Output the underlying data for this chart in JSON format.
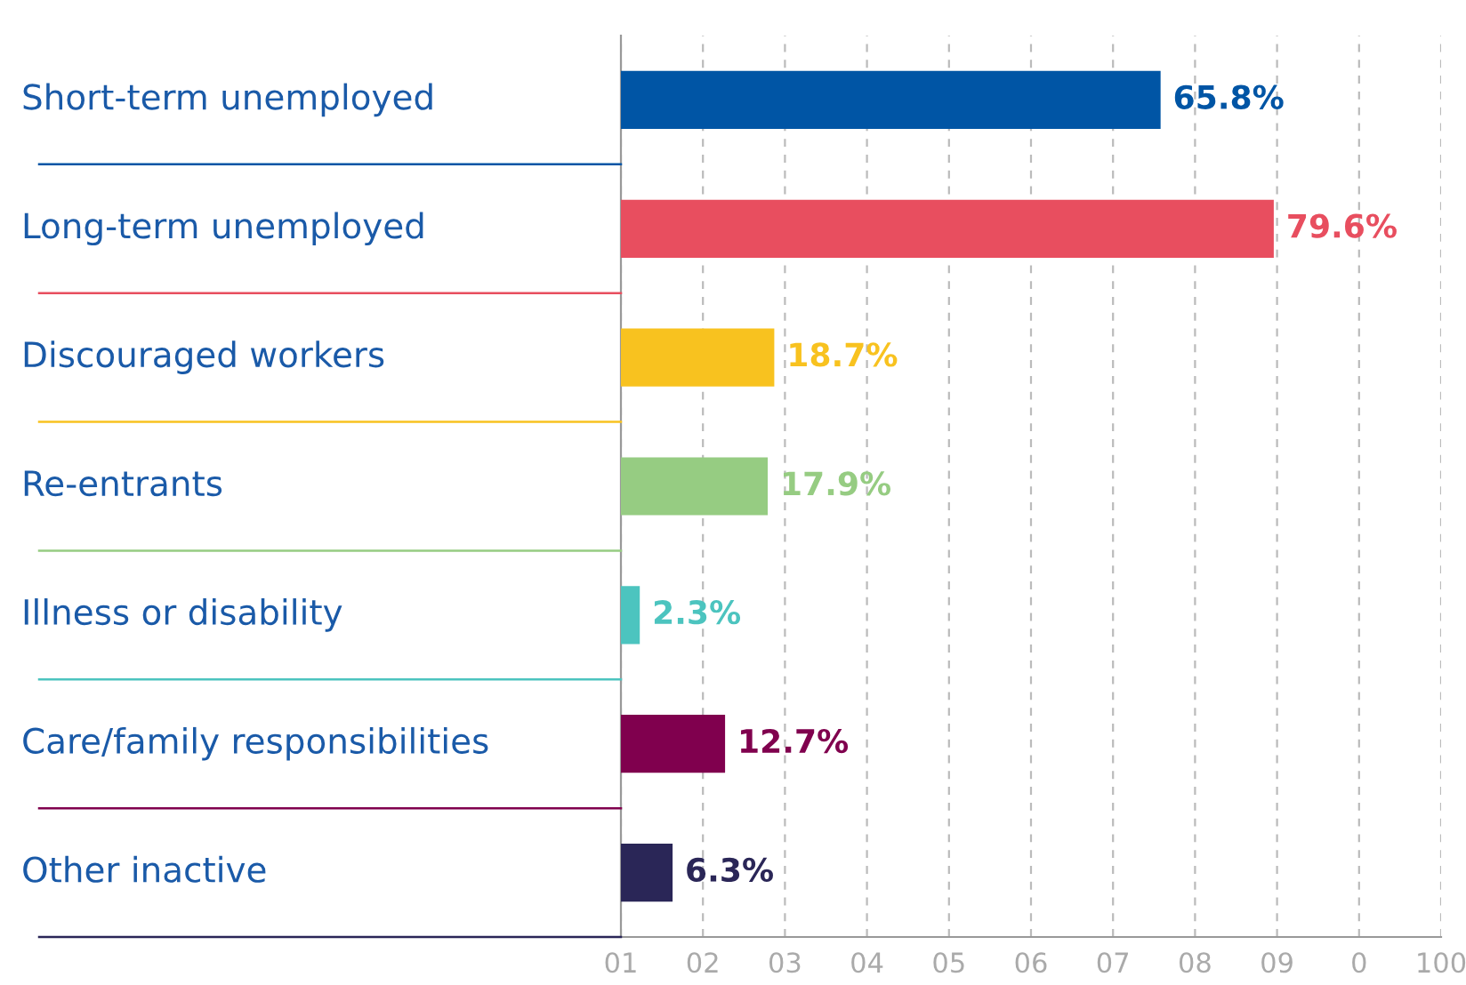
{
  "chart_data": {
    "type": "bar",
    "orientation": "horizontal",
    "categories": [
      "Short-term unemployed",
      "Long-term unemployed",
      "Discouraged workers",
      "Re-entrants",
      "Illness or disability",
      "Care/family responsibilities",
      "Other inactive"
    ],
    "values": [
      65.8,
      79.6,
      18.7,
      17.9,
      2.3,
      12.7,
      6.3
    ],
    "colors": [
      "#0055a5",
      "#e84e5f",
      "#f8c21f",
      "#96cc82",
      "#4cc4bf",
      "#80004e",
      "#2a2657"
    ],
    "value_labels": [
      "65.8%",
      "79.6%",
      "18.7%",
      "17.9%",
      "2.3%",
      "12.7%",
      "6.3%"
    ],
    "xlim": [
      0,
      100
    ],
    "xticks": [
      {
        "value": 0,
        "label": null
      },
      {
        "value": 10,
        "label": null
      },
      {
        "value": 20,
        "label": null
      },
      {
        "value": 30,
        "label": null
      },
      {
        "value": 40,
        "label": null
      },
      {
        "value": 50,
        "label": null
      },
      {
        "value": 60,
        "label": null
      },
      {
        "value": 70,
        "label": null
      },
      {
        "value": 80,
        "label": null
      },
      {
        "value": 90,
        "label": null
      },
      {
        "value": 100,
        "label": null
      }
    ],
    "annotations": [
      "01",
      "02",
      "03",
      "04",
      "05",
      "06",
      "07",
      "08",
      "09",
      "0",
      "100"
    ],
    "data_labels": true,
    "grid": "x",
    "legend": false
  }
}
